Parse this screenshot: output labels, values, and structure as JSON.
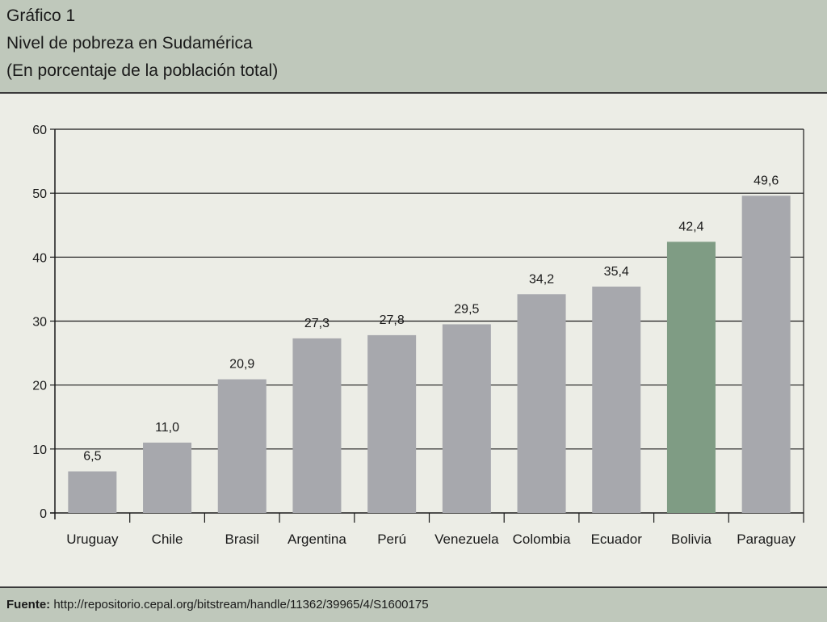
{
  "header": {
    "line1": "Gráfico 1",
    "line2": "Nivel de pobreza en Sudamérica",
    "line3": "(En porcentaje de la población total)"
  },
  "footer": {
    "source_label": "Fuente:",
    "source_url": " http://repositorio.cepal.org/bitstream/handle/11362/39965/4/S1600175"
  },
  "colors": {
    "bar": "#a7a8ad",
    "highlight": "#7f9c84",
    "axis": "#1a1a1a"
  },
  "chart_data": {
    "type": "bar",
    "title": "Nivel de pobreza en Sudamérica",
    "ylabel": "",
    "xlabel": "",
    "ylim": [
      0,
      60
    ],
    "yticks": [
      0,
      10,
      20,
      30,
      40,
      50,
      60
    ],
    "grid": true,
    "categories": [
      "Uruguay",
      "Chile",
      "Brasil",
      "Argentina",
      "Perú",
      "Venezuela",
      "Colombia",
      "Ecuador",
      "Bolivia",
      "Paraguay"
    ],
    "values": [
      6.5,
      11.0,
      20.9,
      27.3,
      27.8,
      29.5,
      34.2,
      35.4,
      42.4,
      49.6
    ],
    "value_labels": [
      "6,5",
      "11,0",
      "20,9",
      "27,3",
      "27,8",
      "29,5",
      "34,2",
      "35,4",
      "42,4",
      "49,6"
    ],
    "highlight": "Bolivia"
  }
}
